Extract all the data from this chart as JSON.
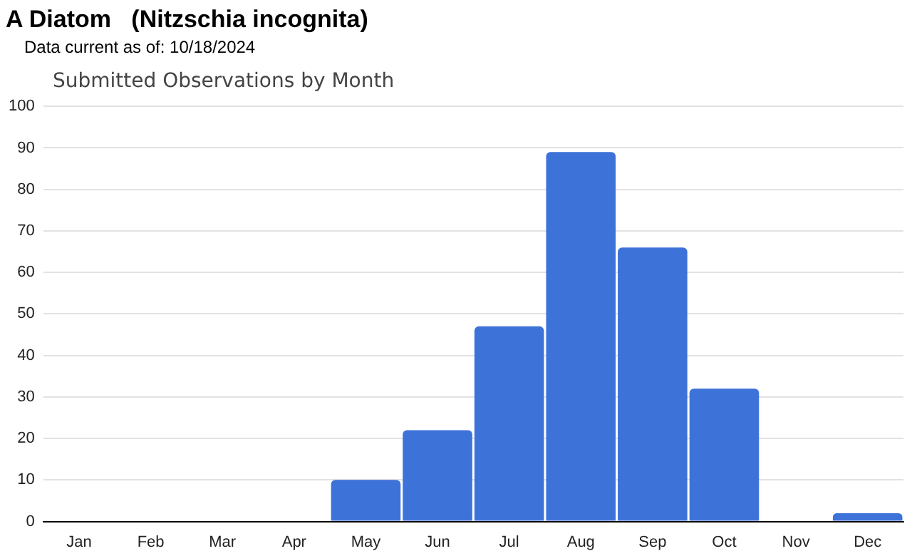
{
  "chart_data": {
    "type": "bar",
    "title": "A Diatom   (Nitzschia incognita)",
    "subtitle": "Data current as of: 10/18/2024",
    "annotations": [
      "Submitted Observations by Month"
    ],
    "categories": [
      "Jan",
      "Feb",
      "Mar",
      "Apr",
      "May",
      "Jun",
      "Jul",
      "Aug",
      "Sep",
      "Oct",
      "Nov",
      "Dec"
    ],
    "values": [
      0,
      0,
      0,
      0,
      10,
      22,
      47,
      89,
      66,
      32,
      0,
      2
    ],
    "color": "#3d72d9",
    "ylim": [
      0,
      100
    ],
    "yticks": [
      0,
      10,
      20,
      30,
      40,
      50,
      60,
      70,
      80,
      90,
      100
    ],
    "grid": "y",
    "legend": false
  }
}
